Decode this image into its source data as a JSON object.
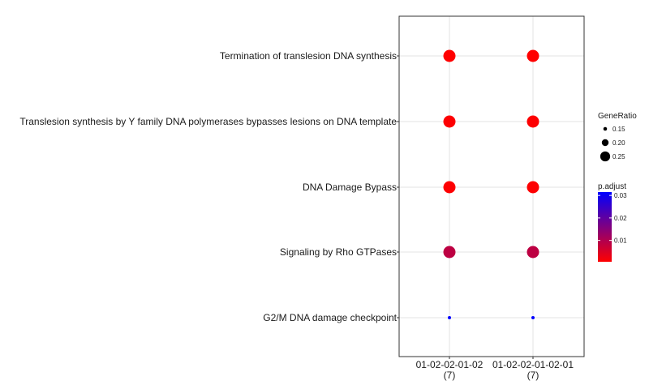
{
  "chart_data": {
    "type": "dot",
    "categories_y": [
      "Termination of translesion DNA synthesis",
      "Translesion synthesis by Y family DNA polymerases bypasses lesions on DNA template",
      "DNA Damage Bypass",
      "Signaling by Rho GTPases",
      "G2/M DNA damage checkpoint"
    ],
    "categories_x": [
      {
        "label": "01-02-02-01-02",
        "count": "(7)"
      },
      {
        "label": "01-02-02-01-02-01",
        "count": "(7)"
      }
    ],
    "points": [
      {
        "x": 0,
        "y": 0,
        "gene_ratio": 0.286,
        "p_adjust": 0.0005
      },
      {
        "x": 1,
        "y": 0,
        "gene_ratio": 0.286,
        "p_adjust": 0.0005
      },
      {
        "x": 0,
        "y": 1,
        "gene_ratio": 0.286,
        "p_adjust": 0.0007
      },
      {
        "x": 1,
        "y": 1,
        "gene_ratio": 0.286,
        "p_adjust": 0.0007
      },
      {
        "x": 0,
        "y": 2,
        "gene_ratio": 0.286,
        "p_adjust": 0.0008
      },
      {
        "x": 1,
        "y": 2,
        "gene_ratio": 0.286,
        "p_adjust": 0.0008
      },
      {
        "x": 0,
        "y": 3,
        "gene_ratio": 0.286,
        "p_adjust": 0.0085
      },
      {
        "x": 1,
        "y": 3,
        "gene_ratio": 0.286,
        "p_adjust": 0.0085
      },
      {
        "x": 0,
        "y": 4,
        "gene_ratio": 0.143,
        "p_adjust": 0.0315
      },
      {
        "x": 1,
        "y": 4,
        "gene_ratio": 0.143,
        "p_adjust": 0.0315
      }
    ],
    "legend_size": {
      "title": "GeneRatio",
      "values": [
        0.15,
        0.2,
        0.25
      ],
      "labels": [
        "0.15",
        "0.20",
        "0.25"
      ]
    },
    "legend_color": {
      "title": "p.adjust",
      "min": 0.0005,
      "max": 0.0315,
      "ticks": [
        0.01,
        0.02,
        0.03
      ],
      "tick_labels": [
        "0.01",
        "0.02",
        "0.03"
      ],
      "low_color": "#ff0000",
      "high_color": "#0000ff"
    },
    "size_range": [
      0.143,
      0.286
    ],
    "grid": true
  }
}
